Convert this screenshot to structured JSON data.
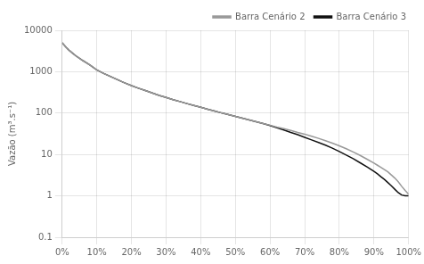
{
  "chart_data": {
    "type": "line",
    "title": "",
    "y_label": "Vazão (m³.s⁻¹)",
    "x": [
      0.0,
      0.01,
      0.02,
      0.03,
      0.04,
      0.05,
      0.06,
      0.07,
      0.08,
      0.09,
      0.1,
      0.12,
      0.14,
      0.16,
      0.18,
      0.2,
      0.22,
      0.24,
      0.26,
      0.28,
      0.3,
      0.32,
      0.34,
      0.36,
      0.38,
      0.4,
      0.42,
      0.44,
      0.46,
      0.48,
      0.5,
      0.52,
      0.54,
      0.56,
      0.58,
      0.6,
      0.62,
      0.64,
      0.66,
      0.68,
      0.7,
      0.72,
      0.74,
      0.76,
      0.78,
      0.8,
      0.82,
      0.84,
      0.86,
      0.88,
      0.9,
      0.91,
      0.92,
      0.93,
      0.94,
      0.95,
      0.96,
      0.97,
      0.98,
      0.99,
      1.0
    ],
    "series": [
      {
        "name": "Barra Cenário 2",
        "color": "#999999",
        "values": [
          5000,
          4000,
          3300,
          2800,
          2400,
          2100,
          1850,
          1650,
          1450,
          1270,
          1100,
          910,
          760,
          640,
          540,
          460,
          400,
          350,
          305,
          268,
          238,
          212,
          190,
          170,
          153,
          138,
          124,
          112,
          101,
          92,
          83,
          75,
          68,
          62,
          56,
          51,
          46,
          42,
          38,
          34,
          31,
          27.5,
          24.5,
          21.5,
          18.8,
          16.2,
          13.8,
          11.5,
          9.5,
          7.7,
          6.2,
          5.5,
          4.9,
          4.3,
          3.8,
          3.2,
          2.7,
          2.2,
          1.7,
          1.35,
          1.1
        ]
      },
      {
        "name": "Barra Cenário 3",
        "color": "#111111",
        "values": [
          5000,
          4000,
          3300,
          2800,
          2400,
          2100,
          1850,
          1650,
          1450,
          1270,
          1100,
          910,
          760,
          640,
          540,
          460,
          400,
          350,
          305,
          268,
          238,
          212,
          190,
          170,
          153,
          138,
          124,
          112,
          101,
          92,
          83,
          75,
          68,
          62,
          56,
          50,
          44,
          39,
          34,
          30,
          26,
          22.5,
          19.5,
          16.8,
          14.2,
          11.8,
          9.7,
          7.9,
          6.3,
          5.0,
          3.9,
          3.4,
          2.9,
          2.5,
          2.1,
          1.75,
          1.45,
          1.2,
          1.05,
          1.0,
          1.0
        ]
      }
    ],
    "xlim": [
      0,
      1
    ],
    "xticks": [
      {
        "value": 0,
        "label": "0%"
      },
      {
        "value": 0.1,
        "label": "10%"
      },
      {
        "value": 0.2,
        "label": "20%"
      },
      {
        "value": 0.3,
        "label": "30%"
      },
      {
        "value": 0.4,
        "label": "40%"
      },
      {
        "value": 0.5,
        "label": "50%"
      },
      {
        "value": 0.6,
        "label": "60%"
      },
      {
        "value": 0.7,
        "label": "70%"
      },
      {
        "value": 0.8,
        "label": "80%"
      },
      {
        "value": 0.9,
        "label": "90%"
      },
      {
        "value": 1.0,
        "label": "100%"
      }
    ],
    "ylim": [
      0.1,
      10000
    ],
    "yticks": [
      0.1,
      1,
      10,
      100,
      1000,
      10000
    ],
    "log": "y",
    "grid": true,
    "legend": "upper right"
  }
}
